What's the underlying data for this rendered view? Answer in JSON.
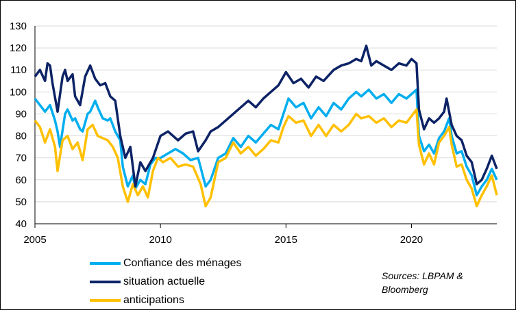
{
  "chart_data": {
    "type": "line",
    "title": "",
    "xlabel": "",
    "ylabel": "",
    "xlim": [
      2005,
      2023.4
    ],
    "ylim": [
      40,
      130
    ],
    "x_ticks": [
      2005,
      2010,
      2015,
      2020
    ],
    "y_ticks": [
      40,
      50,
      60,
      70,
      80,
      90,
      100,
      110,
      120,
      130
    ],
    "grid": "horizontal",
    "legend_position": "bottom-left",
    "series": [
      {
        "name": "Confiance des ménages",
        "color": "#00AEEF",
        "points": [
          [
            2005.0,
            97
          ],
          [
            2005.2,
            94
          ],
          [
            2005.4,
            91
          ],
          [
            2005.6,
            94
          ],
          [
            2005.8,
            87
          ],
          [
            2005.9,
            82
          ],
          [
            2006.0,
            75
          ],
          [
            2006.2,
            90
          ],
          [
            2006.3,
            92
          ],
          [
            2006.5,
            87
          ],
          [
            2006.6,
            88
          ],
          [
            2006.8,
            83
          ],
          [
            2006.9,
            82
          ],
          [
            2007.1,
            90
          ],
          [
            2007.2,
            91
          ],
          [
            2007.4,
            96
          ],
          [
            2007.5,
            93
          ],
          [
            2007.7,
            88
          ],
          [
            2007.9,
            87
          ],
          [
            2008.0,
            88
          ],
          [
            2008.2,
            82
          ],
          [
            2008.4,
            78
          ],
          [
            2008.5,
            66
          ],
          [
            2008.7,
            57
          ],
          [
            2008.9,
            62
          ],
          [
            2009.0,
            56
          ],
          [
            2009.2,
            60
          ],
          [
            2009.4,
            58
          ],
          [
            2009.6,
            67
          ],
          [
            2009.8,
            70
          ],
          [
            2010.0,
            70
          ],
          [
            2010.3,
            72
          ],
          [
            2010.6,
            74
          ],
          [
            2010.9,
            72
          ],
          [
            2011.2,
            69
          ],
          [
            2011.5,
            70
          ],
          [
            2011.8,
            57
          ],
          [
            2012.0,
            60
          ],
          [
            2012.3,
            70
          ],
          [
            2012.6,
            72
          ],
          [
            2012.9,
            79
          ],
          [
            2013.2,
            75
          ],
          [
            2013.5,
            80
          ],
          [
            2013.8,
            77
          ],
          [
            2014.1,
            81
          ],
          [
            2014.4,
            85
          ],
          [
            2014.7,
            83
          ],
          [
            2014.9,
            90
          ],
          [
            2015.1,
            97
          ],
          [
            2015.4,
            93
          ],
          [
            2015.7,
            95
          ],
          [
            2016.0,
            88
          ],
          [
            2016.3,
            93
          ],
          [
            2016.6,
            89
          ],
          [
            2016.9,
            95
          ],
          [
            2017.2,
            92
          ],
          [
            2017.5,
            97
          ],
          [
            2017.8,
            100
          ],
          [
            2018.0,
            98
          ],
          [
            2018.3,
            101
          ],
          [
            2018.6,
            97
          ],
          [
            2018.9,
            99
          ],
          [
            2019.2,
            95
          ],
          [
            2019.5,
            99
          ],
          [
            2019.8,
            97
          ],
          [
            2020.0,
            99
          ],
          [
            2020.2,
            101
          ],
          [
            2020.3,
            80
          ],
          [
            2020.5,
            73
          ],
          [
            2020.7,
            76
          ],
          [
            2020.9,
            72
          ],
          [
            2021.1,
            79
          ],
          [
            2021.3,
            82
          ],
          [
            2021.5,
            88
          ],
          [
            2021.6,
            80
          ],
          [
            2021.8,
            72
          ],
          [
            2022.0,
            73
          ],
          [
            2022.2,
            66
          ],
          [
            2022.4,
            62
          ],
          [
            2022.6,
            53
          ],
          [
            2022.8,
            57
          ],
          [
            2023.0,
            60
          ],
          [
            2023.2,
            65
          ],
          [
            2023.4,
            60
          ]
        ]
      },
      {
        "name": "situation actuelle",
        "color": "#0D2366",
        "points": [
          [
            2005.0,
            107
          ],
          [
            2005.2,
            110
          ],
          [
            2005.4,
            105
          ],
          [
            2005.5,
            113
          ],
          [
            2005.6,
            112
          ],
          [
            2005.7,
            104
          ],
          [
            2005.9,
            91
          ],
          [
            2006.1,
            107
          ],
          [
            2006.2,
            110
          ],
          [
            2006.3,
            105
          ],
          [
            2006.5,
            108
          ],
          [
            2006.6,
            98
          ],
          [
            2006.8,
            94
          ],
          [
            2007.0,
            107
          ],
          [
            2007.2,
            112
          ],
          [
            2007.4,
            106
          ],
          [
            2007.6,
            103
          ],
          [
            2007.8,
            104
          ],
          [
            2008.0,
            98
          ],
          [
            2008.2,
            96
          ],
          [
            2008.4,
            80
          ],
          [
            2008.6,
            70
          ],
          [
            2008.8,
            75
          ],
          [
            2009.0,
            57
          ],
          [
            2009.2,
            68
          ],
          [
            2009.4,
            64
          ],
          [
            2009.7,
            70
          ],
          [
            2010.0,
            80
          ],
          [
            2010.3,
            82
          ],
          [
            2010.5,
            80
          ],
          [
            2010.7,
            78
          ],
          [
            2011.0,
            81
          ],
          [
            2011.3,
            82
          ],
          [
            2011.5,
            73
          ],
          [
            2011.8,
            78
          ],
          [
            2012.0,
            82
          ],
          [
            2012.3,
            84
          ],
          [
            2012.6,
            87
          ],
          [
            2012.9,
            90
          ],
          [
            2013.2,
            93
          ],
          [
            2013.5,
            96
          ],
          [
            2013.8,
            93
          ],
          [
            2014.1,
            97
          ],
          [
            2014.4,
            100
          ],
          [
            2014.7,
            103
          ],
          [
            2015.0,
            109
          ],
          [
            2015.3,
            104
          ],
          [
            2015.6,
            106
          ],
          [
            2015.9,
            102
          ],
          [
            2016.2,
            107
          ],
          [
            2016.5,
            105
          ],
          [
            2016.9,
            110
          ],
          [
            2017.2,
            112
          ],
          [
            2017.5,
            113
          ],
          [
            2017.8,
            115
          ],
          [
            2018.0,
            114
          ],
          [
            2018.2,
            121
          ],
          [
            2018.4,
            112
          ],
          [
            2018.6,
            114
          ],
          [
            2018.9,
            112
          ],
          [
            2019.2,
            110
          ],
          [
            2019.5,
            113
          ],
          [
            2019.8,
            112
          ],
          [
            2020.0,
            115
          ],
          [
            2020.2,
            113
          ],
          [
            2020.3,
            92
          ],
          [
            2020.5,
            83
          ],
          [
            2020.7,
            88
          ],
          [
            2020.9,
            86
          ],
          [
            2021.1,
            88
          ],
          [
            2021.3,
            91
          ],
          [
            2021.4,
            97
          ],
          [
            2021.6,
            85
          ],
          [
            2021.8,
            80
          ],
          [
            2022.0,
            78
          ],
          [
            2022.2,
            71
          ],
          [
            2022.4,
            68
          ],
          [
            2022.6,
            58
          ],
          [
            2022.8,
            60
          ],
          [
            2023.0,
            65
          ],
          [
            2023.2,
            71
          ],
          [
            2023.4,
            65
          ]
        ]
      },
      {
        "name": "anticipations",
        "color": "#FFC000",
        "points": [
          [
            2005.0,
            87
          ],
          [
            2005.2,
            84
          ],
          [
            2005.4,
            77
          ],
          [
            2005.6,
            83
          ],
          [
            2005.8,
            75
          ],
          [
            2005.9,
            64
          ],
          [
            2006.1,
            78
          ],
          [
            2006.3,
            80
          ],
          [
            2006.5,
            74
          ],
          [
            2006.7,
            77
          ],
          [
            2006.9,
            69
          ],
          [
            2007.1,
            83
          ],
          [
            2007.3,
            85
          ],
          [
            2007.5,
            80
          ],
          [
            2007.7,
            79
          ],
          [
            2007.9,
            78
          ],
          [
            2008.1,
            75
          ],
          [
            2008.3,
            70
          ],
          [
            2008.5,
            57
          ],
          [
            2008.7,
            50
          ],
          [
            2008.9,
            58
          ],
          [
            2009.1,
            53
          ],
          [
            2009.3,
            57
          ],
          [
            2009.5,
            52
          ],
          [
            2009.7,
            64
          ],
          [
            2009.9,
            70
          ],
          [
            2010.1,
            68
          ],
          [
            2010.4,
            70
          ],
          [
            2010.7,
            66
          ],
          [
            2011.0,
            67
          ],
          [
            2011.3,
            66
          ],
          [
            2011.6,
            58
          ],
          [
            2011.8,
            48
          ],
          [
            2012.0,
            52
          ],
          [
            2012.3,
            68
          ],
          [
            2012.6,
            70
          ],
          [
            2012.9,
            77
          ],
          [
            2013.2,
            72
          ],
          [
            2013.5,
            75
          ],
          [
            2013.8,
            71
          ],
          [
            2014.1,
            74
          ],
          [
            2014.4,
            78
          ],
          [
            2014.7,
            77
          ],
          [
            2014.9,
            84
          ],
          [
            2015.1,
            89
          ],
          [
            2015.4,
            86
          ],
          [
            2015.7,
            87
          ],
          [
            2016.0,
            80
          ],
          [
            2016.3,
            85
          ],
          [
            2016.6,
            80
          ],
          [
            2016.9,
            85
          ],
          [
            2017.2,
            82
          ],
          [
            2017.5,
            85
          ],
          [
            2017.8,
            90
          ],
          [
            2018.0,
            88
          ],
          [
            2018.3,
            89
          ],
          [
            2018.6,
            86
          ],
          [
            2018.9,
            88
          ],
          [
            2019.2,
            84
          ],
          [
            2019.5,
            87
          ],
          [
            2019.8,
            86
          ],
          [
            2020.0,
            89
          ],
          [
            2020.2,
            92
          ],
          [
            2020.3,
            76
          ],
          [
            2020.5,
            67
          ],
          [
            2020.7,
            72
          ],
          [
            2020.9,
            67
          ],
          [
            2021.1,
            77
          ],
          [
            2021.3,
            80
          ],
          [
            2021.5,
            84
          ],
          [
            2021.6,
            76
          ],
          [
            2021.8,
            66
          ],
          [
            2022.0,
            67
          ],
          [
            2022.2,
            60
          ],
          [
            2022.4,
            56
          ],
          [
            2022.6,
            48
          ],
          [
            2022.8,
            53
          ],
          [
            2023.0,
            57
          ],
          [
            2023.2,
            62
          ],
          [
            2023.4,
            53
          ]
        ]
      }
    ]
  },
  "source_text": "Sources: LBPAM & Bloomberg"
}
